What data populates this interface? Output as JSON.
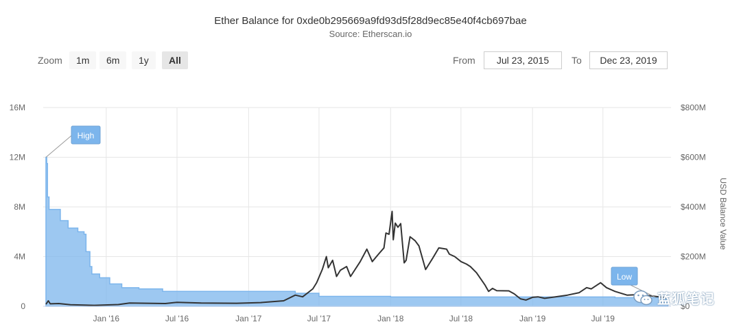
{
  "header": {
    "title": "Ether Balance for 0xde0b295669a9fd93d5f28d9ec85e40f4cb697bae",
    "subtitle": "Source: Etherscan.io"
  },
  "range_selector": {
    "zoom_label": "Zoom",
    "buttons": [
      "1m",
      "6m",
      "1y",
      "All"
    ],
    "selected": "All",
    "from_label": "From",
    "from_value": "Jul 23, 2015",
    "to_label": "To",
    "to_value": "Dec 23, 2019"
  },
  "watermark": {
    "text": "蓝狐笔记",
    "icon": "wechat-icon"
  },
  "chart_data": {
    "type": "line",
    "x_type": "datetime",
    "x_range": [
      "2015-07-23",
      "2019-12-23"
    ],
    "x_ticks": [
      {
        "date": "2016-01-01",
        "label": "Jan '16"
      },
      {
        "date": "2016-07-01",
        "label": "Jul '16"
      },
      {
        "date": "2017-01-01",
        "label": "Jan '17"
      },
      {
        "date": "2017-07-01",
        "label": "Jul '17"
      },
      {
        "date": "2018-01-01",
        "label": "Jan '18"
      },
      {
        "date": "2018-07-01",
        "label": "Jul '18"
      },
      {
        "date": "2019-01-01",
        "label": "Jan '19"
      },
      {
        "date": "2019-07-01",
        "label": "Jul '19"
      }
    ],
    "y_left": {
      "min": 0,
      "max": 16000000,
      "ticks": [
        0,
        4000000,
        8000000,
        12000000,
        16000000
      ],
      "tick_labels": [
        "0",
        "4M",
        "8M",
        "12M",
        "16M"
      ]
    },
    "y_right": {
      "min": 0,
      "max": 800000000,
      "ticks": [
        0,
        200000000,
        400000000,
        600000000,
        800000000
      ],
      "tick_labels": [
        "$0",
        "$200M",
        "$400M",
        "$600M",
        "$800M"
      ],
      "title": "USD Balance Value"
    },
    "grid": true,
    "series": [
      {
        "axis": "left",
        "style": "area",
        "color": "#7cb5ec",
        "points": [
          [
            "2015-07-30",
            12000000
          ],
          [
            "2015-08-01",
            11500000
          ],
          [
            "2015-08-03",
            8800000
          ],
          [
            "2015-08-07",
            7800000
          ],
          [
            "2015-09-05",
            6900000
          ],
          [
            "2015-09-25",
            6300000
          ],
          [
            "2015-10-20",
            6000000
          ],
          [
            "2015-11-05",
            5800000
          ],
          [
            "2015-11-10",
            4400000
          ],
          [
            "2015-11-20",
            3200000
          ],
          [
            "2015-11-25",
            2600000
          ],
          [
            "2015-12-15",
            2300000
          ],
          [
            "2016-01-10",
            1800000
          ],
          [
            "2016-02-10",
            1500000
          ],
          [
            "2016-03-25",
            1400000
          ],
          [
            "2016-05-25",
            1200000
          ],
          [
            "2017-05-01",
            1050000
          ],
          [
            "2017-07-01",
            800000
          ],
          [
            "2018-01-01",
            750000
          ],
          [
            "2019-08-01",
            700000
          ],
          [
            "2019-12-15",
            650000
          ]
        ]
      },
      {
        "axis": "right",
        "style": "line",
        "color": "#333333",
        "points": [
          [
            "2015-07-30",
            8000000
          ],
          [
            "2015-08-05",
            22000000
          ],
          [
            "2015-08-10",
            10000000
          ],
          [
            "2015-09-01",
            11000000
          ],
          [
            "2015-10-01",
            6000000
          ],
          [
            "2015-12-01",
            4000000
          ],
          [
            "2016-02-01",
            7000000
          ],
          [
            "2016-03-01",
            13000000
          ],
          [
            "2016-06-01",
            11000000
          ],
          [
            "2016-07-01",
            16000000
          ],
          [
            "2016-09-01",
            13000000
          ],
          [
            "2016-12-01",
            12000000
          ],
          [
            "2017-02-01",
            15000000
          ],
          [
            "2017-04-01",
            22000000
          ],
          [
            "2017-05-01",
            45000000
          ],
          [
            "2017-05-20",
            38000000
          ],
          [
            "2017-06-15",
            70000000
          ],
          [
            "2017-06-25",
            95000000
          ],
          [
            "2017-07-10",
            150000000
          ],
          [
            "2017-07-20",
            200000000
          ],
          [
            "2017-07-25",
            155000000
          ],
          [
            "2017-08-05",
            185000000
          ],
          [
            "2017-08-15",
            120000000
          ],
          [
            "2017-08-25",
            145000000
          ],
          [
            "2017-09-10",
            160000000
          ],
          [
            "2017-09-20",
            120000000
          ],
          [
            "2017-10-15",
            180000000
          ],
          [
            "2017-11-01",
            230000000
          ],
          [
            "2017-11-15",
            180000000
          ],
          [
            "2017-12-01",
            210000000
          ],
          [
            "2017-12-15",
            235000000
          ],
          [
            "2017-12-20",
            295000000
          ],
          [
            "2017-12-28",
            290000000
          ],
          [
            "2018-01-05",
            382000000
          ],
          [
            "2018-01-08",
            268000000
          ],
          [
            "2018-01-13",
            335000000
          ],
          [
            "2018-01-20",
            318000000
          ],
          [
            "2018-01-27",
            333000000
          ],
          [
            "2018-02-05",
            175000000
          ],
          [
            "2018-02-10",
            185000000
          ],
          [
            "2018-02-20",
            280000000
          ],
          [
            "2018-03-05",
            264000000
          ],
          [
            "2018-03-15",
            243000000
          ],
          [
            "2018-04-01",
            148000000
          ],
          [
            "2018-04-20",
            195000000
          ],
          [
            "2018-05-05",
            235000000
          ],
          [
            "2018-05-25",
            230000000
          ],
          [
            "2018-06-01",
            210000000
          ],
          [
            "2018-06-15",
            200000000
          ],
          [
            "2018-07-01",
            180000000
          ],
          [
            "2018-07-15",
            170000000
          ],
          [
            "2018-07-25",
            160000000
          ],
          [
            "2018-08-10",
            135000000
          ],
          [
            "2018-09-01",
            85000000
          ],
          [
            "2018-09-10",
            60000000
          ],
          [
            "2018-09-20",
            72000000
          ],
          [
            "2018-10-01",
            63000000
          ],
          [
            "2018-11-01",
            62000000
          ],
          [
            "2018-11-15",
            50000000
          ],
          [
            "2018-12-01",
            30000000
          ],
          [
            "2018-12-15",
            25000000
          ],
          [
            "2019-01-01",
            36000000
          ],
          [
            "2019-01-15",
            38000000
          ],
          [
            "2019-02-01",
            32000000
          ],
          [
            "2019-03-01",
            38000000
          ],
          [
            "2019-04-01",
            45000000
          ],
          [
            "2019-05-01",
            55000000
          ],
          [
            "2019-05-20",
            75000000
          ],
          [
            "2019-06-01",
            70000000
          ],
          [
            "2019-06-25",
            95000000
          ],
          [
            "2019-07-10",
            75000000
          ],
          [
            "2019-08-01",
            60000000
          ],
          [
            "2019-09-01",
            45000000
          ],
          [
            "2019-10-01",
            47000000
          ],
          [
            "2019-11-01",
            42000000
          ],
          [
            "2019-12-01",
            36000000
          ],
          [
            "2019-12-15",
            33000000
          ]
        ]
      }
    ],
    "flags": [
      {
        "text": "High",
        "date": "2015-07-30",
        "series": 0
      },
      {
        "text": "Low",
        "date": "2019-11-15",
        "series": 0
      }
    ]
  }
}
